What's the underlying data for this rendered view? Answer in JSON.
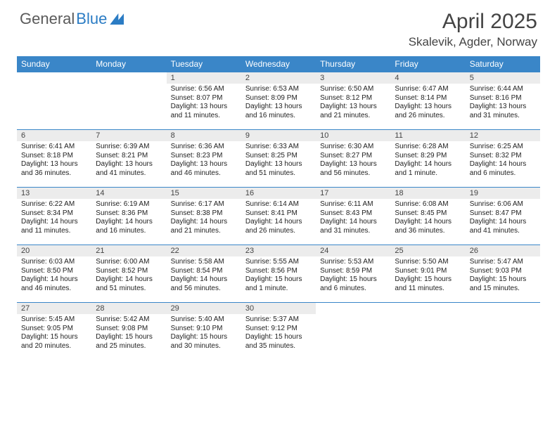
{
  "brand": {
    "part1": "General",
    "part2": "Blue"
  },
  "title": "April 2025",
  "location": "Skalevik, Agder, Norway",
  "colors": {
    "headerBar": "#3a86c8",
    "dayBar": "#ececec",
    "ruleLine": "#3a86c8",
    "text": "#222222",
    "muted": "#5a5a5a",
    "background": "#ffffff"
  },
  "weekdays": [
    "Sunday",
    "Monday",
    "Tuesday",
    "Wednesday",
    "Thursday",
    "Friday",
    "Saturday"
  ],
  "layout": {
    "columns": 7,
    "leadingBlanks": 2,
    "cellFontSize": 10,
    "weekdayFontSize": 12,
    "titleFontSize": 30
  },
  "days": [
    {
      "n": 1,
      "sunrise": "6:56 AM",
      "sunset": "8:07 PM",
      "daylight": "13 hours and 11 minutes."
    },
    {
      "n": 2,
      "sunrise": "6:53 AM",
      "sunset": "8:09 PM",
      "daylight": "13 hours and 16 minutes."
    },
    {
      "n": 3,
      "sunrise": "6:50 AM",
      "sunset": "8:12 PM",
      "daylight": "13 hours and 21 minutes."
    },
    {
      "n": 4,
      "sunrise": "6:47 AM",
      "sunset": "8:14 PM",
      "daylight": "13 hours and 26 minutes."
    },
    {
      "n": 5,
      "sunrise": "6:44 AM",
      "sunset": "8:16 PM",
      "daylight": "13 hours and 31 minutes."
    },
    {
      "n": 6,
      "sunrise": "6:41 AM",
      "sunset": "8:18 PM",
      "daylight": "13 hours and 36 minutes."
    },
    {
      "n": 7,
      "sunrise": "6:39 AM",
      "sunset": "8:21 PM",
      "daylight": "13 hours and 41 minutes."
    },
    {
      "n": 8,
      "sunrise": "6:36 AM",
      "sunset": "8:23 PM",
      "daylight": "13 hours and 46 minutes."
    },
    {
      "n": 9,
      "sunrise": "6:33 AM",
      "sunset": "8:25 PM",
      "daylight": "13 hours and 51 minutes."
    },
    {
      "n": 10,
      "sunrise": "6:30 AM",
      "sunset": "8:27 PM",
      "daylight": "13 hours and 56 minutes."
    },
    {
      "n": 11,
      "sunrise": "6:28 AM",
      "sunset": "8:29 PM",
      "daylight": "14 hours and 1 minute."
    },
    {
      "n": 12,
      "sunrise": "6:25 AM",
      "sunset": "8:32 PM",
      "daylight": "14 hours and 6 minutes."
    },
    {
      "n": 13,
      "sunrise": "6:22 AM",
      "sunset": "8:34 PM",
      "daylight": "14 hours and 11 minutes."
    },
    {
      "n": 14,
      "sunrise": "6:19 AM",
      "sunset": "8:36 PM",
      "daylight": "14 hours and 16 minutes."
    },
    {
      "n": 15,
      "sunrise": "6:17 AM",
      "sunset": "8:38 PM",
      "daylight": "14 hours and 21 minutes."
    },
    {
      "n": 16,
      "sunrise": "6:14 AM",
      "sunset": "8:41 PM",
      "daylight": "14 hours and 26 minutes."
    },
    {
      "n": 17,
      "sunrise": "6:11 AM",
      "sunset": "8:43 PM",
      "daylight": "14 hours and 31 minutes."
    },
    {
      "n": 18,
      "sunrise": "6:08 AM",
      "sunset": "8:45 PM",
      "daylight": "14 hours and 36 minutes."
    },
    {
      "n": 19,
      "sunrise": "6:06 AM",
      "sunset": "8:47 PM",
      "daylight": "14 hours and 41 minutes."
    },
    {
      "n": 20,
      "sunrise": "6:03 AM",
      "sunset": "8:50 PM",
      "daylight": "14 hours and 46 minutes."
    },
    {
      "n": 21,
      "sunrise": "6:00 AM",
      "sunset": "8:52 PM",
      "daylight": "14 hours and 51 minutes."
    },
    {
      "n": 22,
      "sunrise": "5:58 AM",
      "sunset": "8:54 PM",
      "daylight": "14 hours and 56 minutes."
    },
    {
      "n": 23,
      "sunrise": "5:55 AM",
      "sunset": "8:56 PM",
      "daylight": "15 hours and 1 minute."
    },
    {
      "n": 24,
      "sunrise": "5:53 AM",
      "sunset": "8:59 PM",
      "daylight": "15 hours and 6 minutes."
    },
    {
      "n": 25,
      "sunrise": "5:50 AM",
      "sunset": "9:01 PM",
      "daylight": "15 hours and 11 minutes."
    },
    {
      "n": 26,
      "sunrise": "5:47 AM",
      "sunset": "9:03 PM",
      "daylight": "15 hours and 15 minutes."
    },
    {
      "n": 27,
      "sunrise": "5:45 AM",
      "sunset": "9:05 PM",
      "daylight": "15 hours and 20 minutes."
    },
    {
      "n": 28,
      "sunrise": "5:42 AM",
      "sunset": "9:08 PM",
      "daylight": "15 hours and 25 minutes."
    },
    {
      "n": 29,
      "sunrise": "5:40 AM",
      "sunset": "9:10 PM",
      "daylight": "15 hours and 30 minutes."
    },
    {
      "n": 30,
      "sunrise": "5:37 AM",
      "sunset": "9:12 PM",
      "daylight": "15 hours and 35 minutes."
    }
  ],
  "labels": {
    "sunrisePrefix": "Sunrise: ",
    "sunsetPrefix": "Sunset: ",
    "daylightPrefix": "Daylight: "
  }
}
